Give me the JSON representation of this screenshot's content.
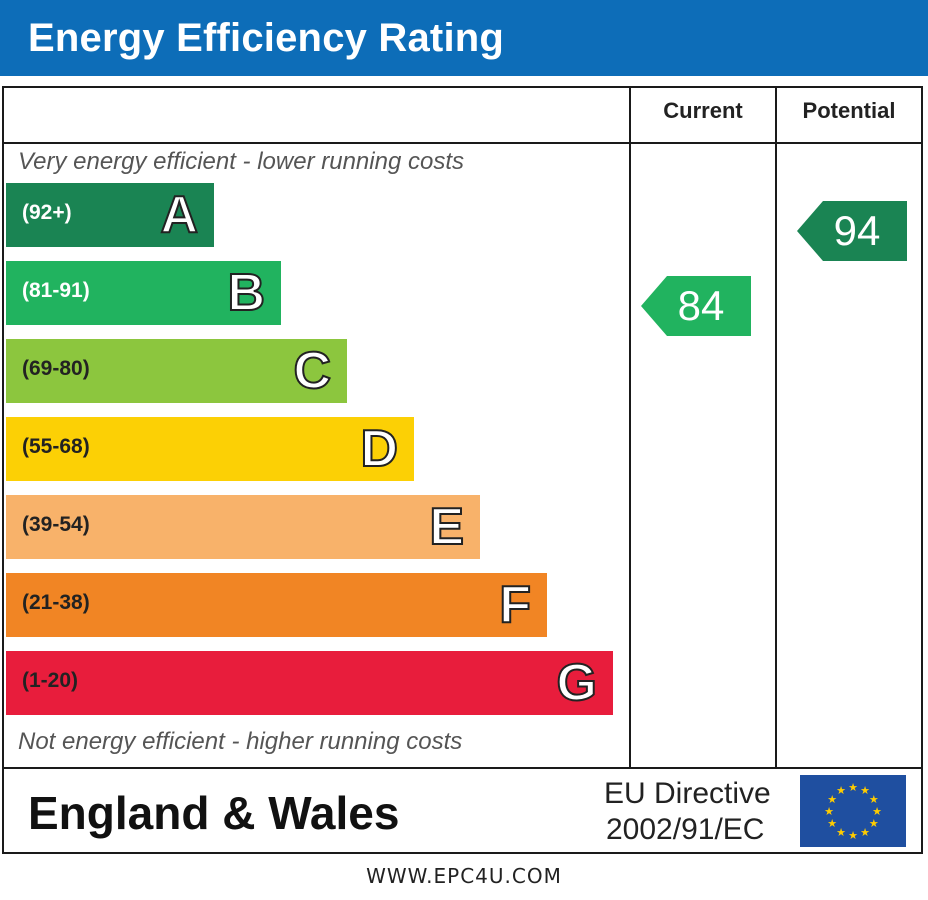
{
  "header": {
    "title": "Energy Efficiency Rating"
  },
  "columns": {
    "current": "Current",
    "potential": "Potential"
  },
  "notes": {
    "top": "Very energy efficient - lower running costs",
    "bottom": "Not energy efficient - higher running costs"
  },
  "chart_data": {
    "type": "bar",
    "bands": [
      {
        "letter": "A",
        "range": "(92+)",
        "color": "#1a8453"
      },
      {
        "letter": "B",
        "range": "(81-91)",
        "color": "#21b35f"
      },
      {
        "letter": "C",
        "range": "(69-80)",
        "color": "#8cc63e"
      },
      {
        "letter": "D",
        "range": "(55-68)",
        "color": "#fcd005"
      },
      {
        "letter": "E",
        "range": "(39-54)",
        "color": "#f8b26a"
      },
      {
        "letter": "F",
        "range": "(21-38)",
        "color": "#f18524"
      },
      {
        "letter": "G",
        "range": "(1-20)",
        "color": "#e81d3c"
      }
    ],
    "current": {
      "value": 84,
      "band": "B",
      "color": "#21b35f"
    },
    "potential": {
      "value": 94,
      "band": "A",
      "color": "#1a8453"
    }
  },
  "footer": {
    "region": "England & Wales",
    "directive_line1": "EU Directive",
    "directive_line2": "2002/91/EC",
    "flag_icon": "eu-flag-icon",
    "url": "WWW.EPC4U.COM"
  }
}
